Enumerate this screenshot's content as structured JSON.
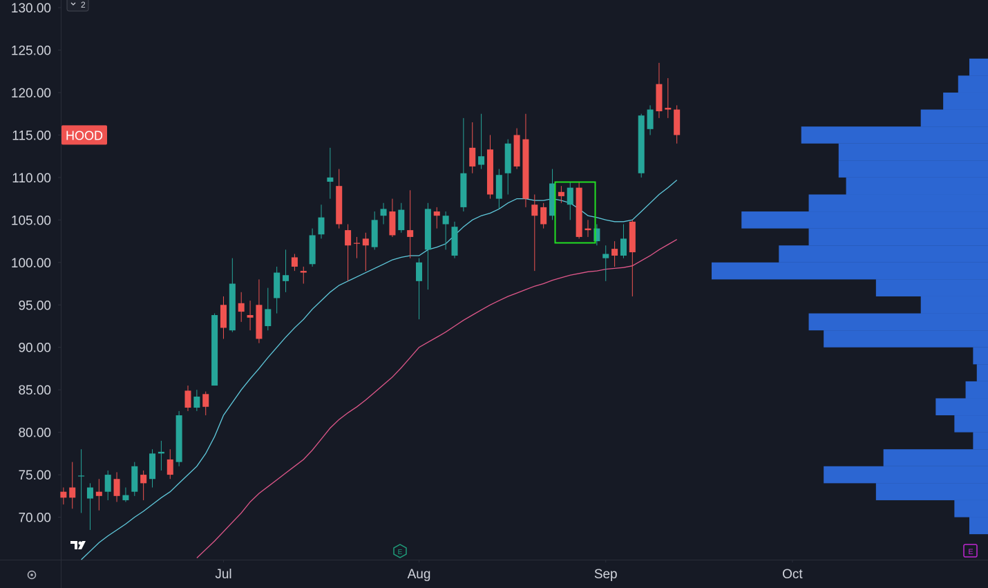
{
  "chart_data": {
    "type": "candlestick",
    "open": [
      73,
      73.5,
      74.8,
      72.2,
      73,
      73,
      74.5,
      72,
      73,
      75,
      74.5,
      77.5,
      76.8,
      76.5,
      84.9,
      82.9,
      84.5,
      85.5,
      95,
      92,
      95.2,
      93.8,
      95,
      92.5,
      95.8,
      97.8,
      100.6,
      99,
      99.8,
      103.3,
      109.5,
      109,
      103.8,
      102.3,
      102.8,
      101.8,
      105.5,
      106,
      103.8,
      103.8,
      97.8,
      101.5,
      106,
      104.5,
      100.8,
      106.5,
      113.5,
      111.5,
      113.3,
      107.5,
      110.5,
      115,
      114.5,
      106.8,
      106.5,
      105.5,
      108.3,
      106.8,
      108.8,
      104,
      102.5,
      100.5,
      101.6,
      100.8,
      104.8,
      110.5,
      115.7,
      121,
      118.2,
      118
    ],
    "high": [
      73.5,
      76.5,
      78,
      74,
      74.5,
      75.5,
      75.3,
      73.5,
      76.5,
      75.5,
      78,
      79,
      78,
      82.5,
      85.5,
      85,
      84.8,
      94,
      96,
      100.5,
      96.5,
      95.5,
      98,
      97,
      99.5,
      101.5,
      101,
      99.5,
      104,
      106.8,
      113.5,
      111,
      104.5,
      103,
      103.5,
      106,
      107,
      107.5,
      107,
      108.5,
      100.5,
      107,
      106.5,
      106,
      104.8,
      117,
      116.5,
      117.5,
      115,
      111,
      114.5,
      115.8,
      117.5,
      108,
      107,
      111,
      109,
      109.5,
      109.5,
      105,
      104.5,
      102,
      102.5,
      104.5,
      105,
      117.5,
      118.5,
      123.5,
      121.7,
      118.5
    ],
    "low": [
      71.5,
      71,
      70.5,
      68.5,
      70.8,
      72,
      71.8,
      71.8,
      72.5,
      72,
      73.5,
      75.5,
      74.5,
      76,
      82.5,
      82.5,
      82,
      85.5,
      91,
      91.8,
      93,
      92,
      90.5,
      92,
      94,
      96.5,
      99,
      97.5,
      99.5,
      102.8,
      107.5,
      104,
      97.8,
      100.5,
      99,
      101.5,
      104.5,
      103,
      103.5,
      100.5,
      93.3,
      96.8,
      104,
      101.5,
      100.5,
      106,
      110.5,
      111,
      107.5,
      106.3,
      108,
      111,
      106.5,
      99,
      104,
      105,
      107,
      105,
      102.8,
      103,
      102,
      97.8,
      99.5,
      100.5,
      96,
      110,
      115,
      117,
      117,
      114
    ],
    "close": [
      72.3,
      72.3,
      74.9,
      73.5,
      72.5,
      75,
      72.5,
      72.6,
      76,
      74,
      77.5,
      77.7,
      75,
      82,
      82.9,
      84.2,
      83,
      93.8,
      92.3,
      97.5,
      94.2,
      93.5,
      91,
      94.5,
      98.8,
      98.5,
      99.5,
      98.8,
      103.2,
      105.3,
      110,
      104.5,
      102,
      102.2,
      102,
      105,
      106.3,
      103.2,
      106.2,
      103,
      100,
      106.3,
      105.5,
      105.5,
      104.2,
      110.5,
      111.3,
      112.5,
      108,
      110.3,
      114,
      111.3,
      107.5,
      105.5,
      104.5,
      109.3,
      107.8,
      108.8,
      103,
      103.8,
      104,
      101,
      100.8,
      102.8,
      101.2,
      117.3,
      118,
      117.8,
      118,
      115
    ],
    "up_color": "#26a69a",
    "down_color": "#ef5350",
    "lines": [
      {
        "color": "#5fc9dc",
        "values": [
          null,
          null,
          65,
          66,
          67,
          67.8,
          68.5,
          69.2,
          70,
          70.7,
          71.5,
          72.3,
          73,
          74,
          75,
          76,
          77.5,
          79.5,
          82,
          83.5,
          85,
          86.3,
          87.5,
          88.8,
          90,
          91.2,
          92.3,
          93.3,
          94.5,
          95.5,
          96.5,
          97.3,
          97.8,
          98.3,
          98.8,
          99.3,
          99.8,
          100.3,
          100.6,
          100.8,
          100.8,
          101.5,
          101.8,
          102.2,
          103.2,
          104.2,
          105,
          105.5,
          105.8,
          106.3,
          107,
          107.5,
          107.5,
          107.3,
          107.3,
          107.5,
          107.3,
          107,
          106.3,
          105.5,
          105.3,
          105,
          104.8,
          104.8,
          105,
          106,
          107,
          108,
          108.8,
          109.7
        ]
      },
      {
        "color": "#e0578a",
        "values": [
          null,
          null,
          null,
          null,
          null,
          null,
          null,
          null,
          null,
          null,
          null,
          null,
          null,
          null,
          null,
          65.2,
          66.2,
          67.2,
          68.3,
          69.4,
          70.5,
          71.8,
          72.8,
          73.6,
          74.4,
          75.2,
          76,
          76.8,
          77.9,
          79.2,
          80.5,
          81.5,
          82.3,
          83,
          83.8,
          84.7,
          85.6,
          86.5,
          87.6,
          88.8,
          90,
          90.6,
          91.2,
          91.8,
          92.5,
          93.2,
          93.8,
          94.4,
          95,
          95.5,
          96,
          96.4,
          96.8,
          97.2,
          97.5,
          97.9,
          98.2,
          98.5,
          98.7,
          98.9,
          99,
          99.2,
          99.3,
          99.4,
          99.6,
          100.2,
          100.8,
          101.5,
          102.1,
          102.7
        ]
      }
    ],
    "volume_profile": {
      "color": "#2f6fe6",
      "bins": [
        68,
        70,
        72,
        74,
        76,
        78,
        80,
        82,
        84,
        86,
        88,
        90,
        92,
        94,
        96,
        98,
        100,
        102,
        104,
        106,
        108,
        110,
        112,
        114,
        116,
        118,
        120,
        122,
        124
      ],
      "values": [
        25,
        45,
        150,
        220,
        140,
        20,
        45,
        70,
        30,
        15,
        20,
        220,
        240,
        90,
        150,
        370,
        280,
        240,
        330,
        240,
        190,
        200,
        200,
        250,
        90,
        60,
        40,
        25
      ]
    },
    "xlim": [
      -0.3,
      104
    ],
    "ylim": [
      65,
      130.9
    ],
    "xticks": [
      {
        "value": 18,
        "label": "Jul"
      },
      {
        "value": 40,
        "label": "Aug"
      },
      {
        "value": 61,
        "label": "Sep"
      },
      {
        "value": 82,
        "label": "Oct"
      }
    ],
    "yticks": [
      {
        "value": 70,
        "label": "70.00"
      },
      {
        "value": 75,
        "label": "75.00"
      },
      {
        "value": 80,
        "label": "80.00"
      },
      {
        "value": 85,
        "label": "85.00"
      },
      {
        "value": 90,
        "label": "90.00"
      },
      {
        "value": 95,
        "label": "95.00"
      },
      {
        "value": 100,
        "label": "100.00"
      },
      {
        "value": 105,
        "label": "105.00"
      },
      {
        "value": 110,
        "label": "110.00"
      },
      {
        "value": 115,
        "label": "115.00"
      },
      {
        "value": 120,
        "label": "120.00"
      },
      {
        "value": 125,
        "label": "125.00"
      },
      {
        "value": 130,
        "label": "130.00"
      }
    ],
    "price_label": {
      "text": "HOOD",
      "value": 115,
      "color": "#ef5350"
    },
    "indicator_count": "2"
  }
}
